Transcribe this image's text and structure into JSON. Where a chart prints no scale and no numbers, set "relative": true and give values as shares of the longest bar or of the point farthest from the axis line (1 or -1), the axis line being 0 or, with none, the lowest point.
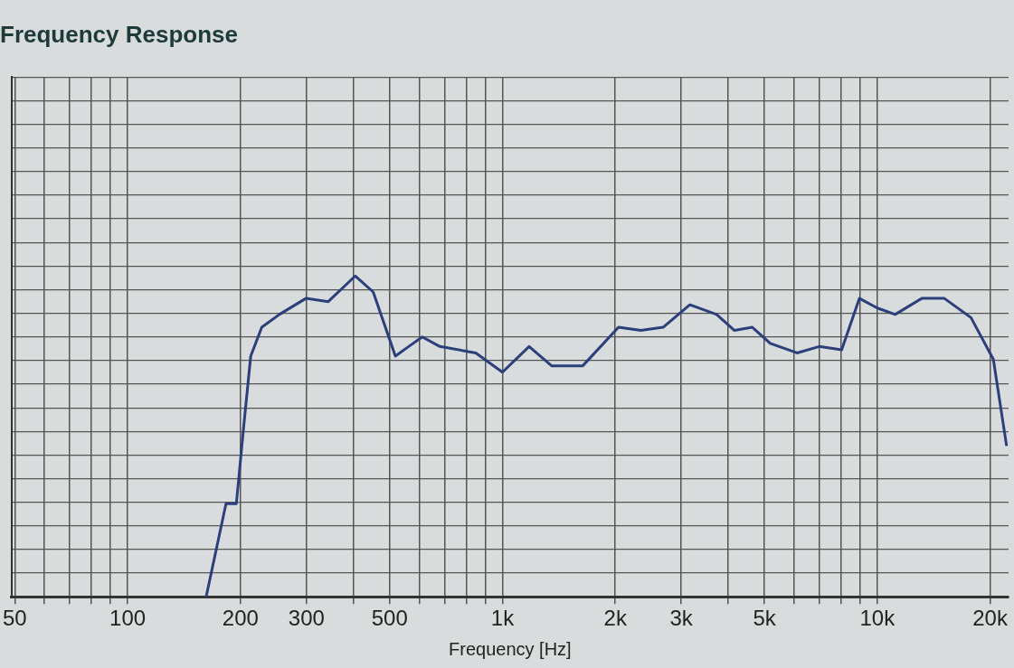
{
  "chart_data": {
    "type": "line",
    "title": "Frequency Response",
    "xlabel": "Frequency [Hz]",
    "relative": true,
    "log": "x",
    "grid": true,
    "legend": false,
    "marker": "none",
    "line_style": "solid",
    "xlim": [
      49,
      22400
    ],
    "xticks": [
      50,
      {
        "value": 60,
        "label": null
      },
      {
        "value": 70,
        "label": null
      },
      {
        "value": 80,
        "label": null
      },
      {
        "value": 90,
        "label": null
      },
      100,
      200,
      300,
      {
        "value": 400,
        "label": null
      },
      500,
      {
        "value": 600,
        "label": null
      },
      {
        "value": 700,
        "label": null
      },
      {
        "value": 800,
        "label": null
      },
      {
        "value": 900,
        "label": null
      },
      {
        "value": 1000,
        "label": "1k"
      },
      {
        "value": 2000,
        "label": "2k"
      },
      {
        "value": 3000,
        "label": "3k"
      },
      {
        "value": 4000,
        "label": null
      },
      {
        "value": 5000,
        "label": "5k"
      },
      {
        "value": 6000,
        "label": null
      },
      {
        "value": 7000,
        "label": null
      },
      {
        "value": 8000,
        "label": null
      },
      {
        "value": 9000,
        "label": null
      },
      {
        "value": 10000,
        "label": "10k"
      },
      {
        "value": 20000,
        "label": "20k"
      }
    ],
    "series": [
      {
        "color": "#2b3f7a",
        "x": [
          162,
          183,
          195,
          204,
          213,
          228,
          254,
          299,
          343,
          405,
          452,
          518,
          562,
          611,
          681,
          849,
          1000,
          1178,
          1352,
          1638,
          2040,
          2340,
          2683,
          3162,
          3727,
          4159,
          4642,
          5180,
          6109,
          7000,
          8035,
          8961,
          10000,
          11160,
          13150,
          15100,
          17780,
          20400,
          22130
        ],
        "values": [
          0,
          0.29,
          0.29,
          0.53,
          0.75,
          0.84,
          0.88,
          0.93,
          0.92,
          1,
          0.95,
          0.75,
          0.78,
          0.81,
          0.78,
          0.76,
          0.7,
          0.78,
          0.72,
          0.72,
          0.84,
          0.83,
          0.84,
          0.91,
          0.88,
          0.83,
          0.84,
          0.79,
          0.76,
          0.78,
          0.77,
          0.93,
          0.9,
          0.88,
          0.93,
          0.93,
          0.87,
          0.74,
          0.47
        ]
      }
    ]
  }
}
